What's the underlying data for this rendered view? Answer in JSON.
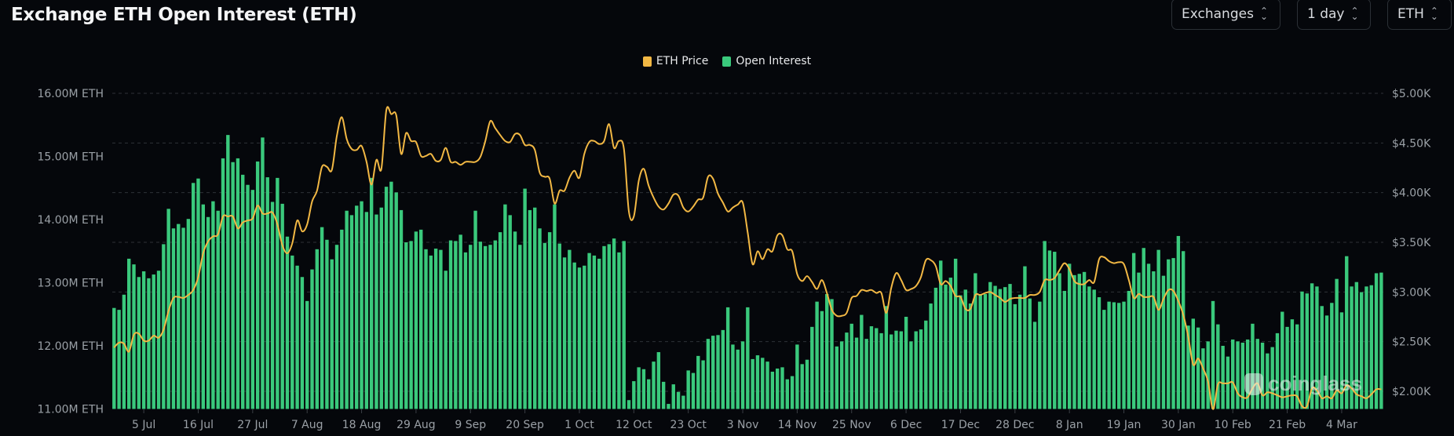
{
  "header": {
    "title": "Exchange ETH Open Interest (ETH)",
    "controls": [
      {
        "label": "Exchanges",
        "icon": "chevron-up-down-icon"
      },
      {
        "label": "1 day",
        "icon": "chevron-up-down-icon"
      },
      {
        "label": "ETH",
        "icon": "chevron-up-down-icon"
      }
    ]
  },
  "watermark": "coinglass",
  "colors": {
    "background": "#05070b",
    "open_interest": "#3ac97c",
    "eth_price": "#f2b844",
    "grid": "#2e3237"
  },
  "chart_data": {
    "type": "bar+line",
    "title": "Exchange ETH Open Interest (ETH)",
    "legend": {
      "placement": "top-center",
      "entries": [
        "ETH Price",
        "Open Interest"
      ]
    },
    "grid": true,
    "left_axis": {
      "ticks": [
        "16.00M ETH",
        "15.00M ETH",
        "14.00M ETH",
        "13.00M ETH",
        "12.00M ETH",
        "11.00M ETH"
      ],
      "range": [
        11,
        16
      ],
      "unit": "M ETH"
    },
    "right_axis": {
      "ticks": [
        "$5.00K",
        "$4.50K",
        "$4.00K",
        "$3.50K",
        "$3.00K",
        "$2.50K",
        "$2.00K"
      ],
      "range": [
        2.0,
        5.0
      ],
      "unit": "K USD"
    },
    "x_ticks": [
      "5 Jul",
      "16 Jul",
      "27 Jul",
      "7 Aug",
      "18 Aug",
      "29 Aug",
      "9 Sep",
      "20 Sep",
      "1 Oct",
      "12 Oct",
      "23 Oct",
      "3 Nov",
      "14 Nov",
      "25 Nov",
      "6 Dec",
      "17 Dec",
      "28 Dec",
      "8 Jan",
      "19 Jan",
      "30 Jan",
      "10 Feb",
      "21 Feb",
      "4 Mar"
    ],
    "x": [
      "29 Jun",
      "30 Jun",
      "1 Jul",
      "2 Jul",
      "3 Jul",
      "4 Jul",
      "5 Jul",
      "6 Jul",
      "7 Jul",
      "8 Jul",
      "9 Jul",
      "10 Jul",
      "11 Jul",
      "12 Jul",
      "13 Jul",
      "14 Jul",
      "15 Jul",
      "16 Jul",
      "17 Jul",
      "18 Jul",
      "19 Jul",
      "20 Jul",
      "21 Jul",
      "22 Jul",
      "23 Jul",
      "24 Jul",
      "25 Jul",
      "26 Jul",
      "27 Jul",
      "28 Jul",
      "29 Jul",
      "30 Jul",
      "31 Jul",
      "1 Aug",
      "2 Aug",
      "3 Aug",
      "4 Aug",
      "5 Aug",
      "6 Aug",
      "7 Aug",
      "8 Aug",
      "9 Aug",
      "10 Aug",
      "11 Aug",
      "12 Aug",
      "13 Aug",
      "14 Aug",
      "15 Aug",
      "16 Aug",
      "17 Aug",
      "18 Aug",
      "19 Aug",
      "20 Aug",
      "21 Aug",
      "22 Aug",
      "23 Aug",
      "24 Aug",
      "25 Aug",
      "26 Aug",
      "27 Aug",
      "28 Aug",
      "29 Aug",
      "30 Aug",
      "31 Aug",
      "1 Sep",
      "2 Sep",
      "3 Sep",
      "4 Sep",
      "5 Sep",
      "6 Sep",
      "7 Sep",
      "8 Sep",
      "9 Sep",
      "10 Sep",
      "11 Sep",
      "12 Sep",
      "13 Sep",
      "14 Sep",
      "15 Sep",
      "16 Sep",
      "17 Sep",
      "18 Sep",
      "19 Sep",
      "20 Sep",
      "21 Sep",
      "22 Sep",
      "23 Sep",
      "24 Sep",
      "25 Sep",
      "26 Sep",
      "27 Sep",
      "28 Sep",
      "29 Sep",
      "30 Sep",
      "1 Oct",
      "2 Oct",
      "3 Oct",
      "4 Oct",
      "5 Oct",
      "6 Oct",
      "7 Oct",
      "8 Oct",
      "9 Oct",
      "10 Oct",
      "11 Oct",
      "12 Oct",
      "13 Oct",
      "14 Oct",
      "15 Oct",
      "16 Oct",
      "17 Oct",
      "18 Oct",
      "19 Oct",
      "20 Oct",
      "21 Oct",
      "22 Oct",
      "23 Oct",
      "24 Oct",
      "25 Oct",
      "26 Oct",
      "27 Oct",
      "28 Oct",
      "29 Oct",
      "30 Oct",
      "31 Oct",
      "1 Nov",
      "2 Nov",
      "3 Nov",
      "4 Nov",
      "5 Nov",
      "6 Nov",
      "7 Nov",
      "8 Nov",
      "9 Nov",
      "10 Nov",
      "11 Nov",
      "12 Nov",
      "13 Nov",
      "14 Nov",
      "15 Nov",
      "16 Nov",
      "17 Nov",
      "18 Nov",
      "19 Nov",
      "20 Nov",
      "21 Nov",
      "22 Nov",
      "23 Nov",
      "24 Nov",
      "25 Nov",
      "26 Nov",
      "27 Nov",
      "28 Nov",
      "29 Nov",
      "30 Nov",
      "1 Dec",
      "2 Dec",
      "3 Dec",
      "4 Dec",
      "5 Dec",
      "6 Dec",
      "7 Dec",
      "8 Dec",
      "9 Dec",
      "10 Dec",
      "11 Dec",
      "12 Dec",
      "13 Dec",
      "14 Dec",
      "15 Dec",
      "16 Dec",
      "17 Dec",
      "18 Dec",
      "19 Dec",
      "20 Dec",
      "21 Dec",
      "22 Dec",
      "23 Dec",
      "24 Dec",
      "25 Dec",
      "26 Dec",
      "27 Dec",
      "28 Dec",
      "29 Dec",
      "30 Dec",
      "31 Dec",
      "1 Jan",
      "2 Jan",
      "3 Jan",
      "4 Jan",
      "5 Jan",
      "6 Jan",
      "7 Jan",
      "8 Jan",
      "9 Jan",
      "10 Jan",
      "11 Jan",
      "12 Jan",
      "13 Jan",
      "14 Jan",
      "15 Jan",
      "16 Jan",
      "17 Jan",
      "18 Jan",
      "19 Jan",
      "20 Jan",
      "21 Jan",
      "22 Jan",
      "23 Jan",
      "24 Jan",
      "25 Jan",
      "26 Jan",
      "27 Jan",
      "28 Jan",
      "29 Jan",
      "30 Jan",
      "31 Jan",
      "1 Feb",
      "2 Feb",
      "3 Feb",
      "4 Feb",
      "5 Feb",
      "6 Feb",
      "7 Feb",
      "8 Feb",
      "9 Feb",
      "10 Feb",
      "11 Feb",
      "12 Feb",
      "13 Feb",
      "14 Feb",
      "15 Feb",
      "16 Feb",
      "17 Feb",
      "18 Feb",
      "19 Feb",
      "20 Feb",
      "21 Feb",
      "22 Feb",
      "23 Feb",
      "24 Feb",
      "25 Feb",
      "26 Feb",
      "27 Feb",
      "28 Feb",
      "1 Mar",
      "2 Mar",
      "3 Mar",
      "4 Mar",
      "5 Mar",
      "6 Mar",
      "7 Mar",
      "8 Mar",
      "9 Mar",
      "10 Mar",
      "11 Mar",
      "12 Mar"
    ],
    "series": [
      {
        "name": "Open Interest",
        "type": "bar",
        "axis": "left",
        "unit": "M ETH",
        "values": [
          12.6,
          12.57,
          12.81,
          13.38,
          13.29,
          13.09,
          13.18,
          13.07,
          13.13,
          13.19,
          13.61,
          14.17,
          13.86,
          13.93,
          13.87,
          14.01,
          14.58,
          14.65,
          14.24,
          14.04,
          14.29,
          14.14,
          14.97,
          15.34,
          14.91,
          14.97,
          14.71,
          14.55,
          14.47,
          14.92,
          15.3,
          14.67,
          14.28,
          14.66,
          14.25,
          13.73,
          13.43,
          13.27,
          13.09,
          12.71,
          13.21,
          13.53,
          13.88,
          13.68,
          13.37,
          13.6,
          13.84,
          14.14,
          14.07,
          14.22,
          14.29,
          14.12,
          14.66,
          14.08,
          14.19,
          14.52,
          14.6,
          14.43,
          14.15,
          13.64,
          13.66,
          13.81,
          13.84,
          13.53,
          13.43,
          13.54,
          13.52,
          13.19,
          13.67,
          13.66,
          13.76,
          13.48,
          13.6,
          14.14,
          13.65,
          13.58,
          13.6,
          13.67,
          13.8,
          14.24,
          14.07,
          13.81,
          13.6,
          14.49,
          14.15,
          14.19,
          13.86,
          13.63,
          13.8,
          14.24,
          13.62,
          13.4,
          13.52,
          13.32,
          13.24,
          13.27,
          13.47,
          13.43,
          13.38,
          13.58,
          13.61,
          13.7,
          13.48,
          13.66,
          11.14,
          11.44,
          11.66,
          11.63,
          11.47,
          11.75,
          11.9,
          11.43,
          11.08,
          11.39,
          11.27,
          11.21,
          11.61,
          11.57,
          11.84,
          11.77,
          12.11,
          12.16,
          12.17,
          12.25,
          12.61,
          12.02,
          11.94,
          12.07,
          12.61,
          11.79,
          11.85,
          11.81,
          11.75,
          11.59,
          11.64,
          11.66,
          11.47,
          11.52,
          12.02,
          11.71,
          11.78,
          12.3,
          12.7,
          12.55,
          12.82,
          12.74,
          11.99,
          12.07,
          12.21,
          12.35,
          12.13,
          12.49,
          12.11,
          12.31,
          12.28,
          12.2,
          12.63,
          12.18,
          12.24,
          12.23,
          12.46,
          12.07,
          12.23,
          12.26,
          12.4,
          12.67,
          12.92,
          13.35,
          12.97,
          13.08,
          13.38,
          12.8,
          12.89,
          12.67,
          13.15,
          12.82,
          12.82,
          13.01,
          12.95,
          12.9,
          12.93,
          12.98,
          12.66,
          12.81,
          13.26,
          12.75,
          12.38,
          12.7,
          13.66,
          13.51,
          13.49,
          13.15,
          12.87,
          13.3,
          13.12,
          13.14,
          13.17,
          12.94,
          12.89,
          12.77,
          12.57,
          12.7,
          12.69,
          12.68,
          12.7,
          12.87,
          13.47,
          13.16,
          13.55,
          13.3,
          13.18,
          13.52,
          13.11,
          13.37,
          13.39,
          13.74,
          13.5,
          12.32,
          12.43,
          12.29,
          11.96,
          12.07,
          12.71,
          12.34,
          12.0,
          11.83,
          12.1,
          12.07,
          12.05,
          12.1,
          12.35,
          12.11,
          12.05,
          11.88,
          11.98,
          12.2,
          12.54,
          12.3,
          12.42,
          12.34,
          12.86,
          12.83,
          12.99,
          12.94,
          12.63,
          12.48,
          12.68,
          13.06,
          12.53,
          13.42,
          12.94,
          13.01,
          12.85,
          12.94,
          12.96,
          13.15,
          13.16
        ]
      },
      {
        "name": "ETH Price",
        "type": "line",
        "axis": "right",
        "unit": "K USD",
        "values": [
          2.44,
          2.49,
          2.48,
          2.4,
          2.57,
          2.58,
          2.51,
          2.51,
          2.56,
          2.54,
          2.62,
          2.81,
          2.94,
          2.95,
          2.94,
          2.97,
          3.02,
          3.15,
          3.39,
          3.51,
          3.56,
          3.58,
          3.76,
          3.76,
          3.76,
          3.64,
          3.7,
          3.72,
          3.74,
          3.87,
          3.79,
          3.79,
          3.8,
          3.68,
          3.47,
          3.39,
          3.49,
          3.72,
          3.61,
          3.68,
          3.91,
          4.02,
          4.26,
          4.26,
          4.23,
          4.57,
          4.76,
          4.54,
          4.44,
          4.43,
          4.47,
          4.31,
          4.08,
          4.33,
          4.24,
          4.83,
          4.79,
          4.78,
          4.39,
          4.6,
          4.52,
          4.51,
          4.37,
          4.37,
          4.39,
          4.32,
          4.33,
          4.45,
          4.31,
          4.31,
          4.28,
          4.31,
          4.31,
          4.31,
          4.36,
          4.52,
          4.72,
          4.65,
          4.58,
          4.52,
          4.51,
          4.59,
          4.58,
          4.48,
          4.48,
          4.43,
          4.2,
          4.16,
          4.14,
          3.89,
          4.02,
          4.02,
          4.15,
          4.22,
          4.15,
          4.39,
          4.51,
          4.52,
          4.49,
          4.52,
          4.69,
          4.45,
          4.52,
          4.44,
          3.81,
          3.76,
          4.12,
          4.24,
          4.07,
          3.95,
          3.86,
          3.83,
          3.89,
          3.98,
          3.97,
          3.85,
          3.81,
          3.86,
          3.93,
          3.95,
          4.16,
          4.14,
          3.99,
          3.9,
          3.81,
          3.85,
          3.88,
          3.9,
          3.6,
          3.28,
          3.41,
          3.33,
          3.43,
          3.41,
          3.57,
          3.57,
          3.43,
          3.41,
          3.18,
          3.11,
          3.16,
          3.1,
          3.03,
          3.12,
          2.99,
          2.82,
          2.76,
          2.76,
          2.79,
          2.94,
          2.96,
          3.02,
          3.01,
          3.02,
          2.99,
          2.99,
          2.79,
          3.04,
          3.19,
          3.12,
          3.02,
          3.03,
          3.06,
          3.15,
          3.32,
          3.32,
          3.26,
          3.08,
          3.11,
          3.06,
          2.96,
          2.95,
          2.83,
          2.83,
          2.97,
          2.97,
          2.99,
          3.0,
          2.97,
          2.94,
          2.9,
          2.93,
          2.94,
          2.94,
          2.94,
          2.97,
          2.97,
          3.0,
          3.12,
          3.12,
          3.14,
          3.22,
          3.29,
          3.23,
          3.11,
          3.08,
          3.08,
          3.12,
          3.1,
          3.33,
          3.35,
          3.31,
          3.29,
          3.3,
          3.28,
          3.12,
          2.94,
          2.98,
          2.95,
          2.95,
          2.95,
          2.82,
          2.93,
          3.02,
          3.01,
          2.91,
          2.77,
          2.55,
          2.27,
          2.33,
          2.23,
          2.1,
          1.82,
          2.07,
          2.08,
          2.08,
          2.09,
          1.98,
          1.94,
          1.94,
          2.03,
          2.08,
          1.96,
          1.99,
          1.98,
          1.96,
          1.94,
          1.95,
          1.96,
          1.95,
          1.85,
          1.85,
          2.03,
          2.01,
          1.93,
          1.95,
          1.93,
          2.01,
          1.98,
          2.06,
          2.03,
          1.97,
          1.95,
          1.93,
          1.97,
          2.02,
          2.02
        ]
      }
    ]
  }
}
